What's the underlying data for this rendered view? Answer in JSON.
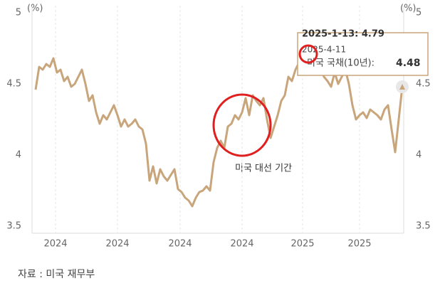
{
  "chart_data": {
    "type": "line",
    "unit_left": "(%)",
    "unit_right": "(%)",
    "source": "자료 :  미국 재무부",
    "annotation": "미국 대선 기간",
    "tooltip": {
      "peak": "2025-1-13: 4.79",
      "date": "2025-4-11",
      "series_label": "미국 국채(10년):",
      "value": 4.48
    },
    "x": [
      0,
      1,
      2,
      3,
      4,
      5,
      6,
      7,
      8,
      9,
      10,
      11,
      12,
      13,
      14,
      15,
      16,
      17,
      18,
      19,
      20,
      21,
      22,
      23,
      24,
      25,
      26,
      27,
      28,
      29,
      30,
      31,
      32,
      33,
      34,
      35,
      36,
      37,
      38,
      39,
      40,
      41,
      42,
      43,
      44,
      45,
      46,
      47,
      48,
      49,
      50,
      51,
      52,
      53,
      54,
      55,
      56,
      57,
      58,
      59,
      60,
      61,
      62,
      63,
      64,
      65,
      66,
      67,
      68,
      69,
      70,
      71,
      72,
      73,
      74,
      75,
      76,
      77,
      78,
      79,
      80,
      81,
      82,
      83,
      84,
      85,
      86,
      87,
      88,
      89,
      90,
      91,
      92,
      93,
      94,
      95,
      96,
      97,
      98,
      99,
      100,
      101,
      102,
      103
    ],
    "series": [
      {
        "name": "미국 국채(10년)",
        "color": "#c8a57a",
        "values": [
          4.46,
          4.62,
          4.6,
          4.64,
          4.62,
          4.68,
          4.58,
          4.6,
          4.52,
          4.55,
          4.48,
          4.5,
          4.55,
          4.6,
          4.5,
          4.38,
          4.42,
          4.3,
          4.22,
          4.28,
          4.25,
          4.3,
          4.35,
          4.28,
          4.2,
          4.25,
          4.2,
          4.22,
          4.25,
          4.2,
          4.18,
          4.08,
          3.82,
          3.92,
          3.8,
          3.9,
          3.85,
          3.82,
          3.86,
          3.9,
          3.76,
          3.74,
          3.7,
          3.68,
          3.64,
          3.7,
          3.74,
          3.75,
          3.78,
          3.75,
          3.95,
          4.05,
          4.1,
          4.05,
          4.2,
          4.22,
          4.28,
          4.25,
          4.3,
          4.4,
          4.28,
          4.42,
          4.38,
          4.35,
          4.4,
          4.25,
          4.12,
          4.2,
          4.28,
          4.38,
          4.42,
          4.55,
          4.52,
          4.6,
          4.65,
          4.79,
          4.6,
          4.62,
          4.58,
          4.62,
          4.6,
          4.55,
          4.52,
          4.48,
          4.58,
          4.5,
          4.55,
          4.6,
          4.5,
          4.35,
          4.25,
          4.28,
          4.3,
          4.26,
          4.32,
          4.3,
          4.28,
          4.25,
          4.32,
          4.35,
          4.18,
          4.02,
          4.25,
          4.48
        ]
      }
    ],
    "xlim": [
      -1,
      103.4
    ],
    "xticks": [
      {
        "value": 5.6,
        "label": "2024"
      },
      {
        "value": 23,
        "label": "2024"
      },
      {
        "value": 40.6,
        "label": "2024"
      },
      {
        "value": 58,
        "label": "2024"
      },
      {
        "value": 75,
        "label": "2025"
      },
      {
        "value": 91,
        "label": "2025"
      }
    ],
    "ylim": [
      3.45,
      5.05
    ],
    "yticks": [
      3.5,
      4,
      4.5,
      5
    ],
    "grid": true
  }
}
